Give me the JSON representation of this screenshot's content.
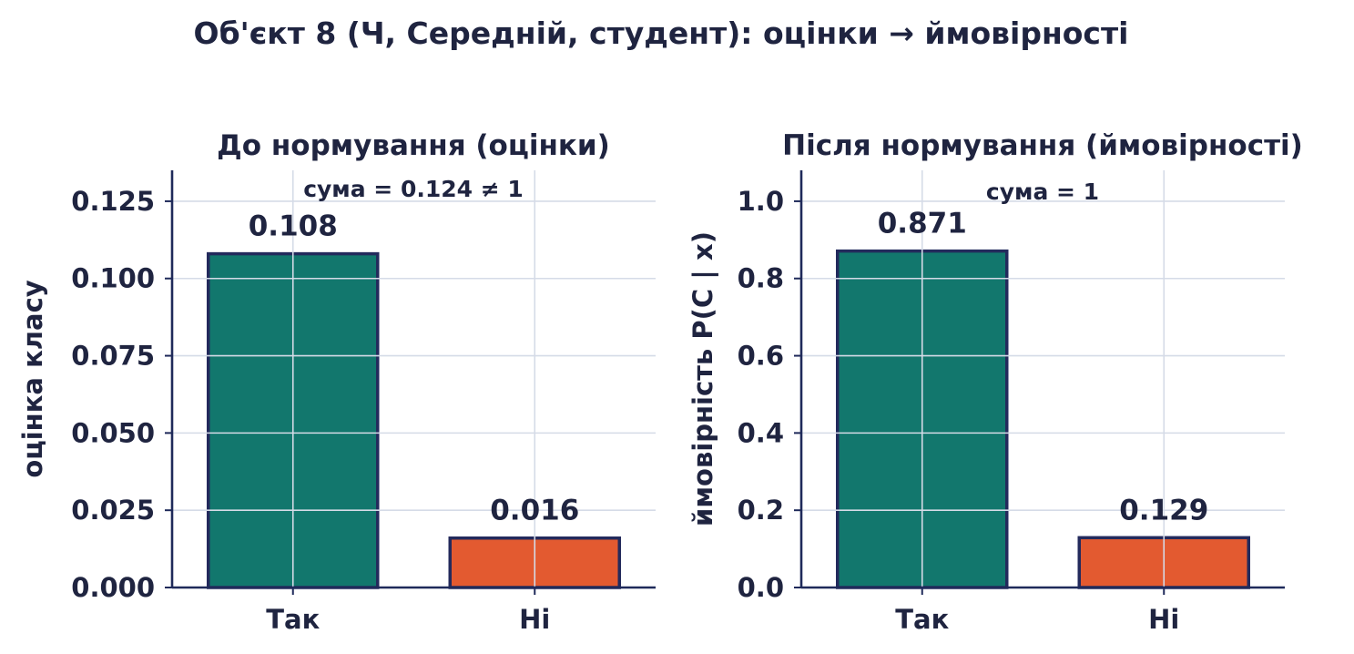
{
  "figure": {
    "title": "Об'єкт 8 (Ч, Середній, студент): оцінки → ймовірності",
    "colors": {
      "text": "#1f2440",
      "axis": "#1f2a5a",
      "grid": "#d5dbe7",
      "bar_edge": "#232a5c"
    }
  },
  "chart_data": [
    {
      "type": "bar",
      "title": "До нормування (оцінки)",
      "ylabel": "оцінка класу",
      "xlabel": "",
      "categories": [
        "Так",
        "Ні"
      ],
      "values": [
        0.108,
        0.016
      ],
      "value_labels": [
        "0.108",
        "0.016"
      ],
      "colors": [
        "#12776d",
        "#e35a30"
      ],
      "ylim": [
        0,
        0.135
      ],
      "yticks": [
        0,
        0.025,
        0.05,
        0.075,
        0.1,
        0.125
      ],
      "ytick_labels": [
        "0.000",
        "0.025",
        "0.050",
        "0.075",
        "0.100",
        "0.125"
      ],
      "annotation": "сума = 0.124 ≠ 1",
      "grid": true
    },
    {
      "type": "bar",
      "title": "Після нормування (ймовірності)",
      "ylabel": "ймовірність P(C | x)",
      "xlabel": "",
      "categories": [
        "Так",
        "Ні"
      ],
      "values": [
        0.871,
        0.129
      ],
      "value_labels": [
        "0.871",
        "0.129"
      ],
      "colors": [
        "#12776d",
        "#e35a30"
      ],
      "ylim": [
        0,
        1.08
      ],
      "yticks": [
        0,
        0.2,
        0.4,
        0.6,
        0.8,
        1.0
      ],
      "ytick_labels": [
        "0.0",
        "0.2",
        "0.4",
        "0.6",
        "0.8",
        "1.0"
      ],
      "annotation": "сума = 1",
      "grid": true
    }
  ]
}
